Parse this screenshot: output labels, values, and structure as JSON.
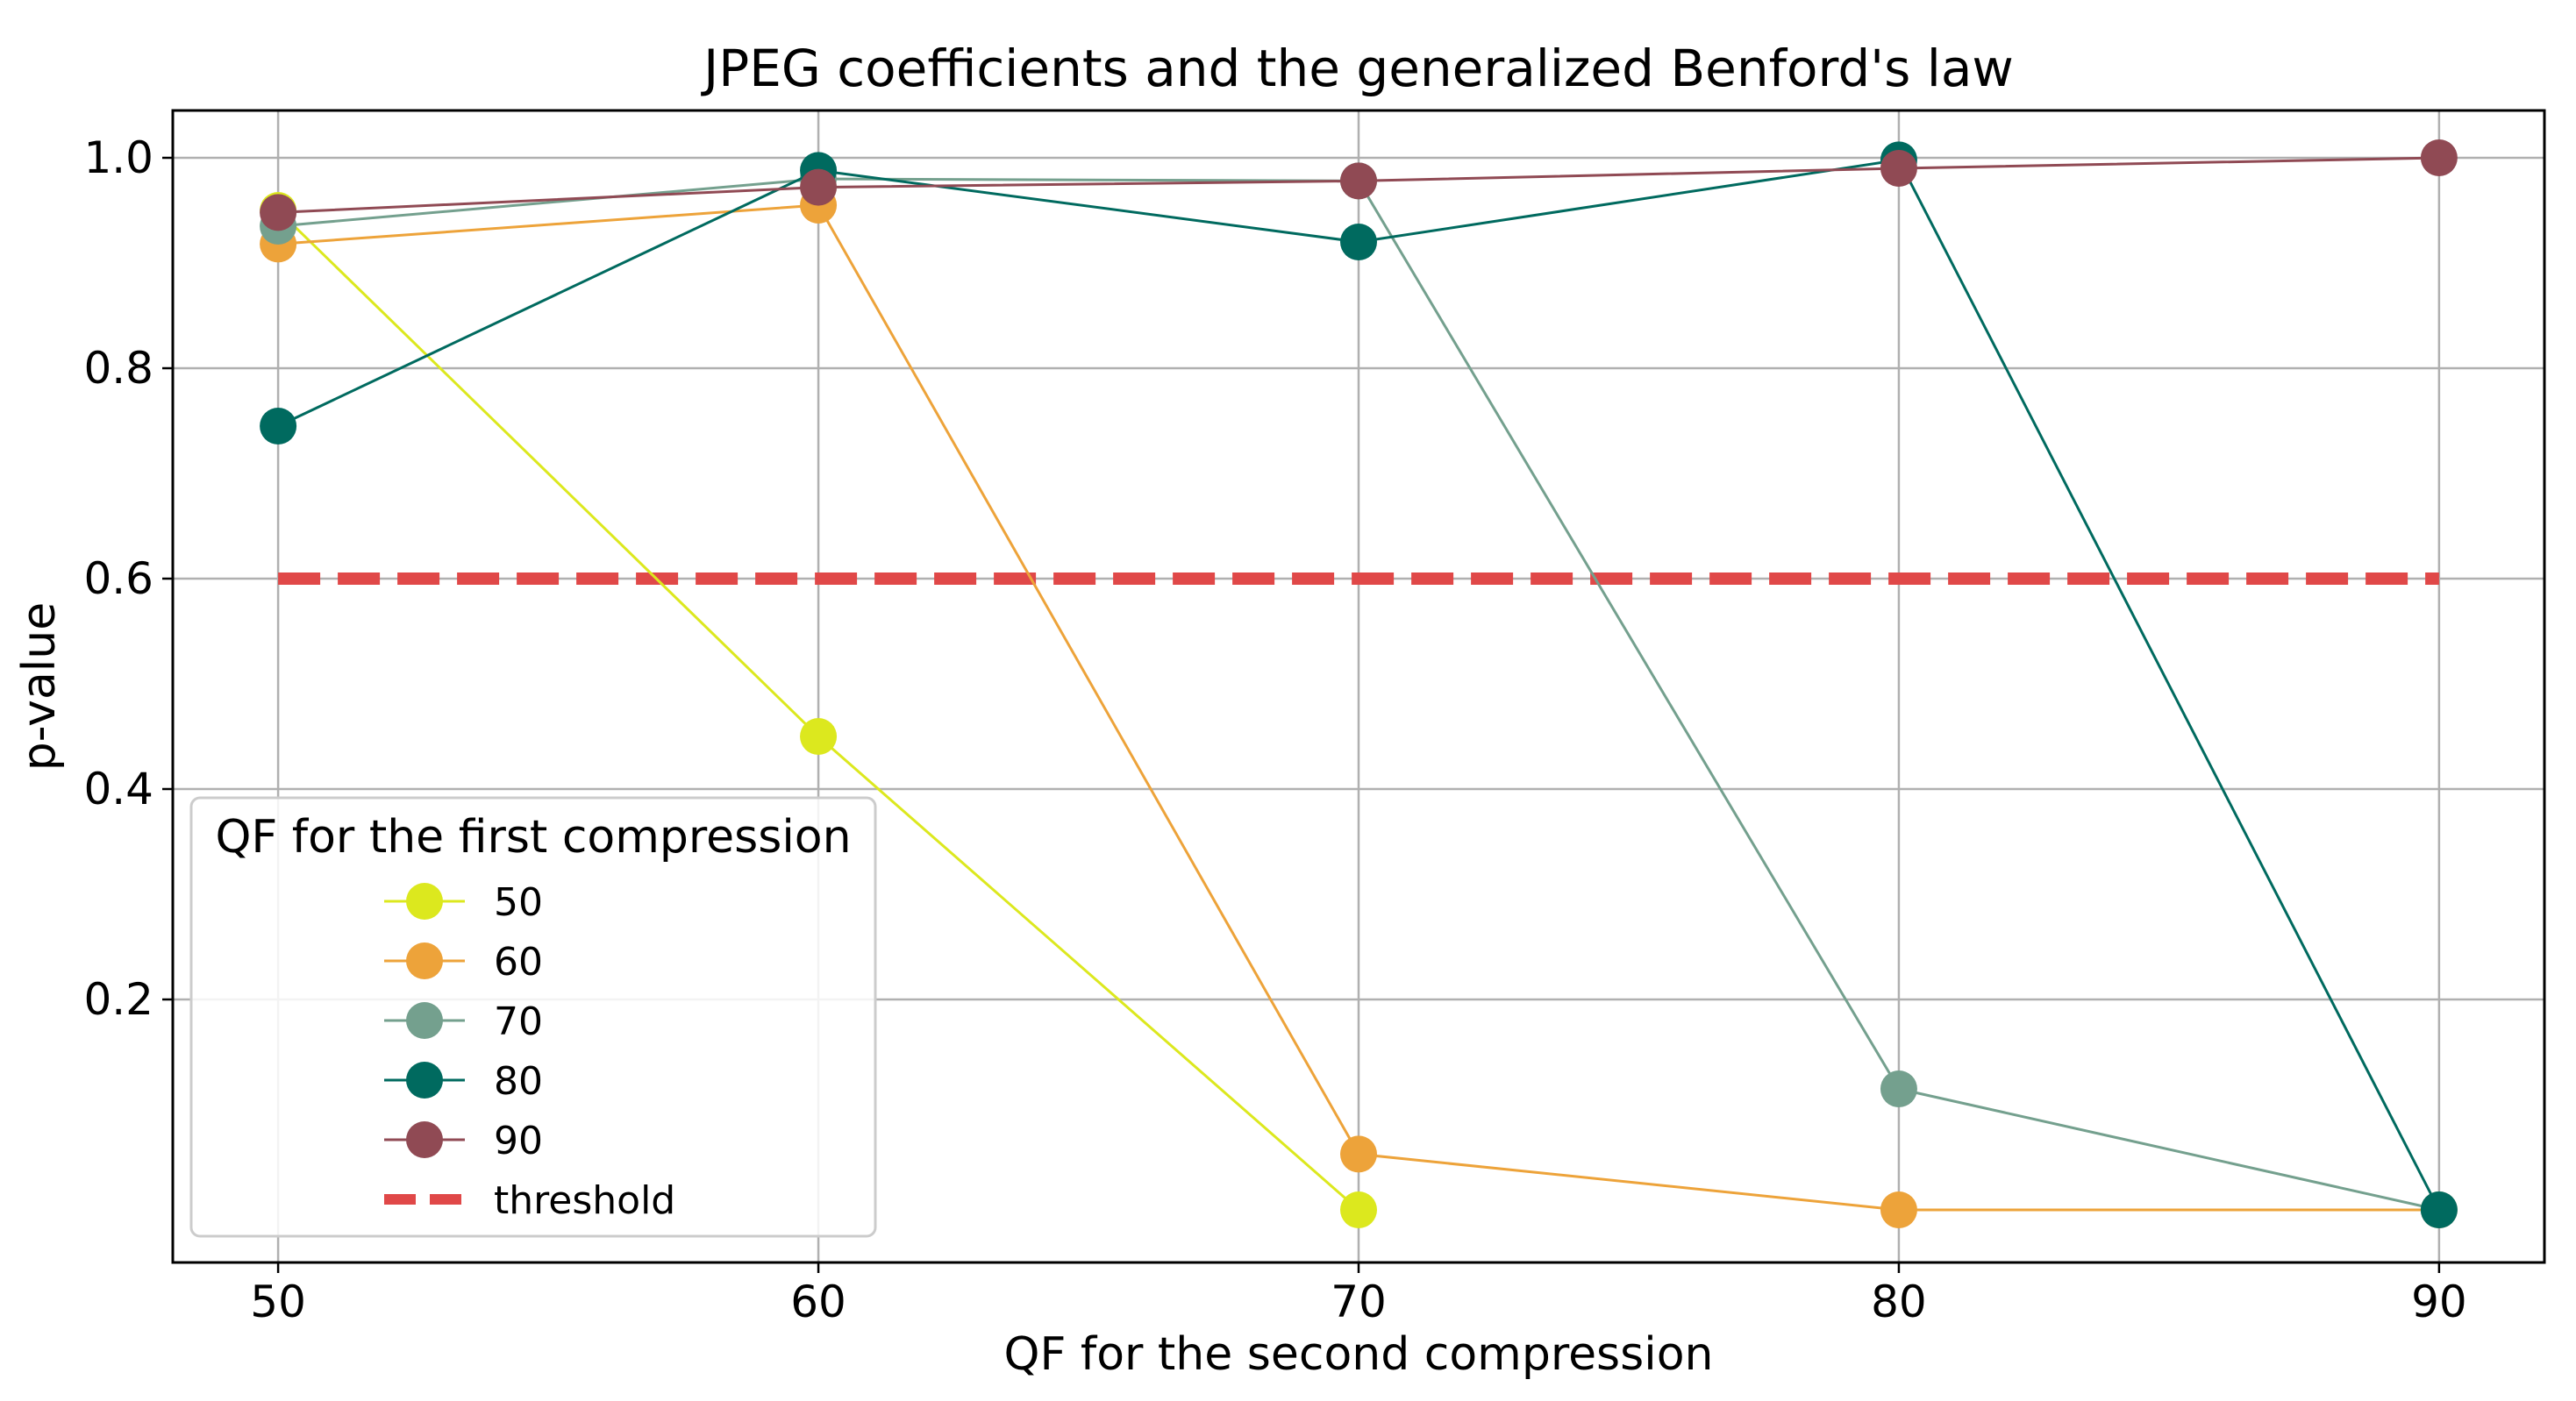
{
  "chart_data": {
    "type": "line",
    "title": "JPEG coefficients and the generalized Benford's law",
    "xlabel": "QF for the second compression",
    "ylabel": "p-value",
    "x": [
      50,
      60,
      70,
      80,
      90
    ],
    "x_tick_labels": [
      "50",
      "60",
      "70",
      "80",
      "90"
    ],
    "y_ticks": [
      0.2,
      0.4,
      0.6,
      0.8,
      1.0
    ],
    "y_tick_labels": [
      "0.2",
      "0.4",
      "0.6",
      "0.8",
      "1.0"
    ],
    "xlim": [
      48.05,
      91.95
    ],
    "ylim": [
      -0.05,
      1.045
    ],
    "grid": true,
    "legend": {
      "title": "QF for the first compression",
      "position": "lower-left"
    },
    "series": [
      {
        "name": "50",
        "color": "#dce81e",
        "x": [
          50,
          60,
          70
        ],
        "values": [
          0.95,
          0.45,
          0.0
        ]
      },
      {
        "name": "60",
        "color": "#eda33a",
        "x": [
          50,
          60,
          70,
          80,
          90
        ],
        "values": [
          0.918,
          0.955,
          0.053,
          0.0,
          0.0
        ]
      },
      {
        "name": "70",
        "color": "#74a08e",
        "x": [
          50,
          60,
          70,
          80,
          90
        ],
        "values": [
          0.935,
          0.98,
          0.978,
          0.115,
          0.0
        ]
      },
      {
        "name": "80",
        "color": "#006a5f",
        "x": [
          50,
          60,
          70,
          80,
          90
        ],
        "values": [
          0.745,
          0.988,
          0.92,
          0.998,
          0.0
        ]
      },
      {
        "name": "90",
        "color": "#904a54",
        "x": [
          50,
          60,
          70,
          80,
          90
        ],
        "values": [
          0.948,
          0.972,
          0.978,
          0.99,
          1.0
        ]
      }
    ],
    "threshold": {
      "name": "threshold",
      "value": 0.6,
      "x_range": [
        50,
        90
      ],
      "color": "#e04848"
    }
  }
}
